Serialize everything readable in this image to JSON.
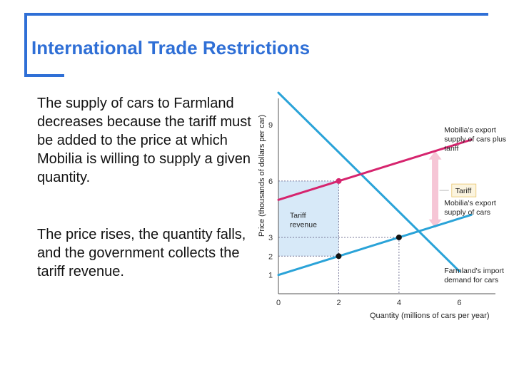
{
  "slide": {
    "title": "International Trade Restrictions",
    "paragraphs": [
      "The supply of cars to Farmland decreases because the tariff must be added to the price at which Mobilia is willing to supply a given quantity.",
      "The price rises, the quantity falls, and the government collects the tariff revenue."
    ]
  },
  "colors": {
    "accent": "#2f6fd6",
    "supply_line": "#2aa3d8",
    "tariff_line": "#d6246e",
    "revenue_fill": "#d7e9f8",
    "tariff_arrow": "#f6c6d6",
    "tariff_label_bg": "#fbf4df"
  },
  "chart_data": {
    "type": "line",
    "xlabel": "Quantity (millions of cars per year)",
    "ylabel": "Price (thousands of dollars per car)",
    "xlim": [
      0,
      7.2
    ],
    "ylim": [
      0,
      10.4
    ],
    "x_ticks": [
      0,
      2,
      4,
      6
    ],
    "y_ticks": [
      1,
      2,
      3,
      6,
      9
    ],
    "highlight_x_tick": 2,
    "highlight_y_tick": 6,
    "series": [
      {
        "name": "Farmland's import demand for cars",
        "x": [
          0,
          6
        ],
        "y": [
          10.7,
          1.2
        ]
      },
      {
        "name": "Mobilia's export supply of cars",
        "x": [
          0,
          6.4
        ],
        "y": [
          1,
          4.2
        ]
      },
      {
        "name": "Mobilia's export supply of cars plus tariff",
        "x": [
          0,
          6.4
        ],
        "y": [
          5,
          8.2
        ]
      }
    ],
    "points": [
      {
        "x": 2,
        "y": 6,
        "series": "tariff"
      },
      {
        "x": 2,
        "y": 2,
        "series": "supply"
      },
      {
        "x": 4,
        "y": 3,
        "series": "supply"
      }
    ],
    "tariff_revenue": {
      "x0": 0,
      "x1": 2,
      "y0": 2,
      "y1": 6,
      "label": "Tariff revenue"
    },
    "tariff_marker": {
      "label": "Tariff"
    },
    "annotations": [
      "Mobilia's export supply of cars plus tariff",
      "Mobilia's export supply of cars",
      "Farmland's import demand for cars"
    ]
  }
}
